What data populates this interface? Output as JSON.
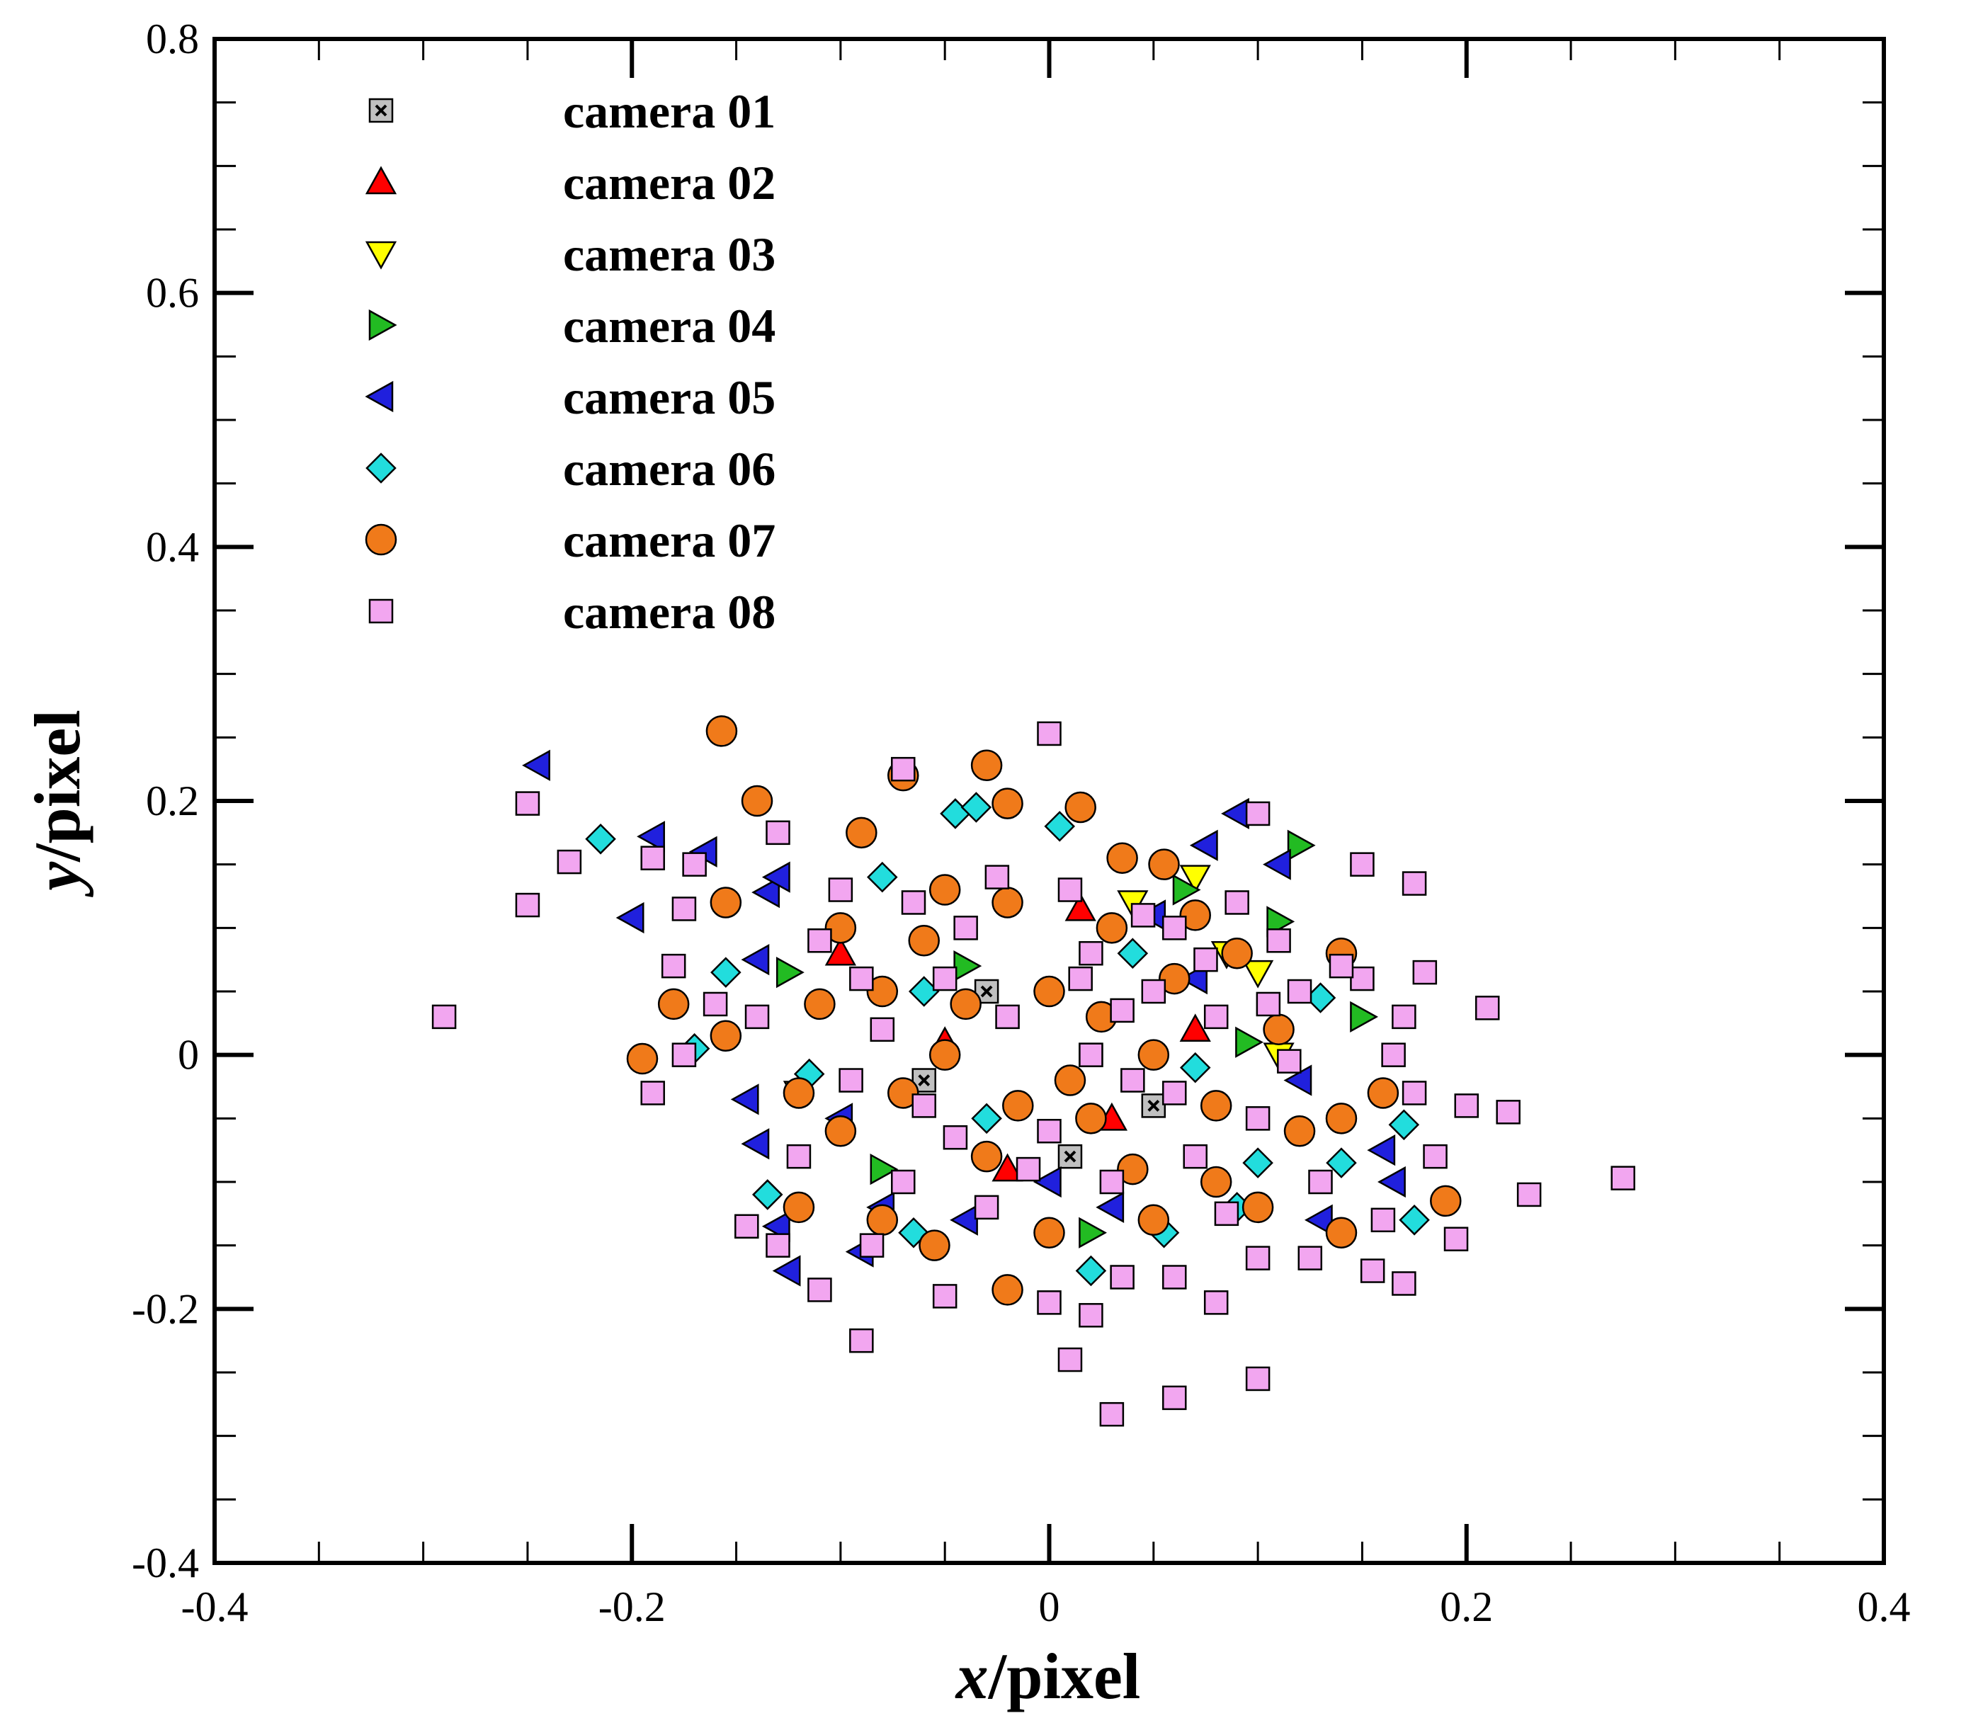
{
  "chart_data": {
    "type": "scatter",
    "title": "",
    "xlabel_italic": "x",
    "xlabel_rest": "/pixel",
    "ylabel_italic": "y",
    "ylabel_rest": "/pixel",
    "xlim": [
      -0.4,
      0.4
    ],
    "ylim": [
      -0.4,
      0.8
    ],
    "xticks": [
      -0.4,
      -0.2,
      0,
      0.2,
      0.4
    ],
    "xtick_labels": [
      "-0.4",
      "-0.2",
      "0",
      "0.2",
      "0.4"
    ],
    "yticks": [
      -0.4,
      -0.2,
      0,
      0.2,
      0.4,
      0.6,
      0.8
    ],
    "ytick_labels": [
      "-0.4",
      "-0.2",
      "0",
      "0.2",
      "0.4",
      "0.6",
      "0.8"
    ],
    "grid": false,
    "legend_position": "top-left",
    "series": [
      {
        "name": "camera 01",
        "marker": "square-x",
        "color": "#c0c0c0",
        "points": [
          [
            0.02,
            0.0
          ],
          [
            -0.03,
            0.05
          ],
          [
            0.05,
            -0.04
          ],
          [
            0.01,
            -0.08
          ],
          [
            -0.06,
            -0.02
          ]
        ]
      },
      {
        "name": "camera 02",
        "marker": "triangle-up",
        "color": "#ff0000",
        "points": [
          [
            -0.1,
            0.08
          ],
          [
            0.015,
            0.115
          ],
          [
            -0.05,
            0.01
          ],
          [
            0.03,
            -0.05
          ],
          [
            0.07,
            0.02
          ],
          [
            -0.02,
            -0.09
          ]
        ]
      },
      {
        "name": "camera 03",
        "marker": "triangle-down",
        "color": "#ffff00",
        "points": [
          [
            0.07,
            0.14
          ],
          [
            0.1,
            0.065
          ],
          [
            0.085,
            0.08
          ],
          [
            -0.12,
            -0.03
          ],
          [
            0.04,
            0.12
          ],
          [
            0.11,
            0.0
          ]
        ]
      },
      {
        "name": "camera 04",
        "marker": "triangle-right",
        "color": "#22bb22",
        "points": [
          [
            0.12,
            0.165
          ],
          [
            0.11,
            0.105
          ],
          [
            0.15,
            0.03
          ],
          [
            -0.125,
            0.065
          ],
          [
            0.095,
            0.01
          ],
          [
            -0.08,
            -0.09
          ],
          [
            0.065,
            0.13
          ],
          [
            0.02,
            -0.14
          ],
          [
            -0.04,
            0.07
          ]
        ]
      },
      {
        "name": "camera 05",
        "marker": "triangle-left",
        "color": "#2020dd",
        "points": [
          [
            -0.245,
            0.228
          ],
          [
            -0.19,
            0.172
          ],
          [
            -0.2,
            0.108
          ],
          [
            -0.165,
            0.16
          ],
          [
            -0.135,
            0.128
          ],
          [
            -0.14,
            0.075
          ],
          [
            -0.13,
            0.14
          ],
          [
            -0.145,
            -0.035
          ],
          [
            -0.14,
            -0.07
          ],
          [
            -0.13,
            -0.135
          ],
          [
            -0.125,
            -0.17
          ],
          [
            -0.09,
            -0.155
          ],
          [
            0.09,
            0.19
          ],
          [
            0.075,
            0.165
          ],
          [
            0.11,
            0.15
          ],
          [
            0.05,
            0.11
          ],
          [
            0.13,
            -0.13
          ],
          [
            0.16,
            -0.075
          ],
          [
            0.165,
            -0.1
          ],
          [
            -0.08,
            -0.12
          ],
          [
            -0.04,
            -0.13
          ],
          [
            0.0,
            -0.1
          ],
          [
            0.03,
            -0.12
          ],
          [
            0.07,
            0.06
          ],
          [
            -0.1,
            -0.05
          ],
          [
            0.12,
            -0.02
          ]
        ]
      },
      {
        "name": "camera 06",
        "marker": "diamond",
        "color": "#22dddd",
        "points": [
          [
            -0.215,
            0.17
          ],
          [
            -0.155,
            0.065
          ],
          [
            -0.17,
            0.005
          ],
          [
            -0.045,
            0.19
          ],
          [
            -0.035,
            0.195
          ],
          [
            0.005,
            0.18
          ],
          [
            -0.135,
            -0.11
          ],
          [
            -0.115,
            -0.015
          ],
          [
            -0.065,
            -0.14
          ],
          [
            0.02,
            -0.17
          ],
          [
            0.055,
            -0.14
          ],
          [
            0.09,
            -0.12
          ],
          [
            0.1,
            -0.085
          ],
          [
            0.13,
            0.045
          ],
          [
            0.14,
            -0.085
          ],
          [
            0.17,
            -0.055
          ],
          [
            0.175,
            -0.13
          ],
          [
            -0.08,
            0.14
          ],
          [
            -0.06,
            0.05
          ],
          [
            0.04,
            0.08
          ],
          [
            0.07,
            -0.01
          ],
          [
            -0.03,
            -0.05
          ]
        ]
      },
      {
        "name": "camera 07",
        "marker": "circle",
        "color": "#f07a1a",
        "points": [
          [
            -0.157,
            0.255
          ],
          [
            -0.14,
            0.2
          ],
          [
            -0.195,
            -0.003
          ],
          [
            -0.18,
            0.04
          ],
          [
            -0.155,
            0.015
          ],
          [
            -0.155,
            0.12
          ],
          [
            -0.1,
            0.1
          ],
          [
            -0.09,
            0.175
          ],
          [
            -0.07,
            0.22
          ],
          [
            -0.03,
            0.228
          ],
          [
            -0.02,
            0.198
          ],
          [
            0.015,
            0.195
          ],
          [
            0.035,
            0.155
          ],
          [
            0.055,
            0.15
          ],
          [
            -0.05,
            0.13
          ],
          [
            -0.11,
            0.04
          ],
          [
            -0.12,
            -0.03
          ],
          [
            -0.12,
            -0.12
          ],
          [
            -0.08,
            -0.13
          ],
          [
            -0.055,
            -0.15
          ],
          [
            -0.02,
            -0.185
          ],
          [
            0.0,
            -0.14
          ],
          [
            0.05,
            -0.13
          ],
          [
            0.08,
            -0.1
          ],
          [
            0.1,
            -0.12
          ],
          [
            0.14,
            -0.14
          ],
          [
            0.14,
            -0.05
          ],
          [
            0.14,
            0.08
          ],
          [
            0.16,
            -0.03
          ],
          [
            0.19,
            -0.115
          ],
          [
            0.11,
            0.02
          ],
          [
            0.12,
            -0.06
          ],
          [
            -0.08,
            0.05
          ],
          [
            -0.05,
            0.0
          ],
          [
            0.0,
            0.05
          ],
          [
            0.05,
            0.0
          ],
          [
            0.02,
            -0.05
          ],
          [
            -0.03,
            -0.08
          ],
          [
            0.06,
            0.06
          ],
          [
            -0.06,
            0.09
          ],
          [
            0.08,
            -0.04
          ],
          [
            -0.1,
            -0.06
          ],
          [
            0.03,
            0.1
          ],
          [
            -0.02,
            0.12
          ],
          [
            0.09,
            0.08
          ],
          [
            0.01,
            -0.02
          ],
          [
            -0.04,
            0.04
          ],
          [
            0.04,
            -0.09
          ],
          [
            -0.07,
            -0.03
          ],
          [
            0.07,
            0.11
          ],
          [
            -0.015,
            -0.04
          ],
          [
            0.025,
            0.03
          ]
        ]
      },
      {
        "name": "camera 08",
        "marker": "square",
        "color": "#f2a6f0",
        "points": [
          [
            -0.29,
            0.03
          ],
          [
            -0.25,
            0.118
          ],
          [
            -0.25,
            0.198
          ],
          [
            -0.23,
            0.152
          ],
          [
            -0.19,
            0.155
          ],
          [
            -0.19,
            -0.03
          ],
          [
            -0.18,
            0.07
          ],
          [
            -0.175,
            0.115
          ],
          [
            -0.17,
            0.15
          ],
          [
            -0.175,
            0.0
          ],
          [
            -0.16,
            0.04
          ],
          [
            -0.14,
            0.03
          ],
          [
            -0.145,
            -0.135
          ],
          [
            -0.13,
            0.175
          ],
          [
            -0.11,
            -0.185
          ],
          [
            -0.09,
            -0.225
          ],
          [
            -0.07,
            0.225
          ],
          [
            0.0,
            0.253
          ],
          [
            0.1,
            0.19
          ],
          [
            0.15,
            0.15
          ],
          [
            0.175,
            0.135
          ],
          [
            0.18,
            0.065
          ],
          [
            0.21,
            0.037
          ],
          [
            0.2,
            -0.04
          ],
          [
            0.22,
            -0.045
          ],
          [
            0.23,
            -0.11
          ],
          [
            0.275,
            -0.097
          ],
          [
            0.195,
            -0.145
          ],
          [
            0.185,
            -0.08
          ],
          [
            0.17,
            -0.18
          ],
          [
            0.155,
            -0.17
          ],
          [
            0.1,
            -0.255
          ],
          [
            0.06,
            -0.27
          ],
          [
            0.03,
            -0.283
          ],
          [
            0.01,
            -0.24
          ],
          [
            0.02,
            -0.205
          ],
          [
            0.035,
            -0.175
          ],
          [
            0.06,
            -0.175
          ],
          [
            0.08,
            -0.195
          ],
          [
            0.1,
            -0.16
          ],
          [
            0.125,
            -0.16
          ],
          [
            0.0,
            -0.195
          ],
          [
            -0.05,
            -0.19
          ],
          [
            0.16,
            -0.13
          ],
          [
            0.175,
            -0.03
          ],
          [
            0.165,
            0.0
          ],
          [
            0.15,
            0.06
          ],
          [
            0.17,
            0.03
          ],
          [
            0.14,
            0.07
          ],
          [
            -0.1,
            0.13
          ],
          [
            -0.08,
            0.02
          ],
          [
            -0.06,
            -0.04
          ],
          [
            -0.04,
            0.1
          ],
          [
            -0.02,
            0.03
          ],
          [
            0.0,
            -0.06
          ],
          [
            0.02,
            0.08
          ],
          [
            0.04,
            -0.02
          ],
          [
            0.06,
            0.1
          ],
          [
            0.08,
            0.03
          ],
          [
            0.1,
            -0.05
          ],
          [
            0.12,
            0.05
          ],
          [
            -0.12,
            -0.08
          ],
          [
            -0.09,
            0.06
          ],
          [
            -0.07,
            -0.1
          ],
          [
            -0.03,
            -0.12
          ],
          [
            0.01,
            0.13
          ],
          [
            0.03,
            -0.1
          ],
          [
            0.05,
            0.05
          ],
          [
            0.07,
            -0.08
          ],
          [
            0.09,
            0.12
          ],
          [
            -0.11,
            0.09
          ],
          [
            -0.05,
            0.06
          ],
          [
            -0.01,
            -0.09
          ],
          [
            0.02,
            0.0
          ],
          [
            0.06,
            -0.03
          ],
          [
            0.11,
            0.09
          ],
          [
            0.13,
            -0.1
          ],
          [
            -0.13,
            -0.15
          ],
          [
            -0.085,
            -0.15
          ],
          [
            0.045,
            0.11
          ],
          [
            -0.025,
            0.14
          ],
          [
            0.085,
            -0.125
          ],
          [
            0.115,
            -0.005
          ],
          [
            -0.045,
            -0.065
          ],
          [
            0.015,
            0.06
          ],
          [
            0.035,
            0.035
          ],
          [
            -0.065,
            0.12
          ],
          [
            0.075,
            0.075
          ],
          [
            -0.095,
            -0.02
          ],
          [
            0.105,
            0.04
          ]
        ]
      }
    ]
  }
}
